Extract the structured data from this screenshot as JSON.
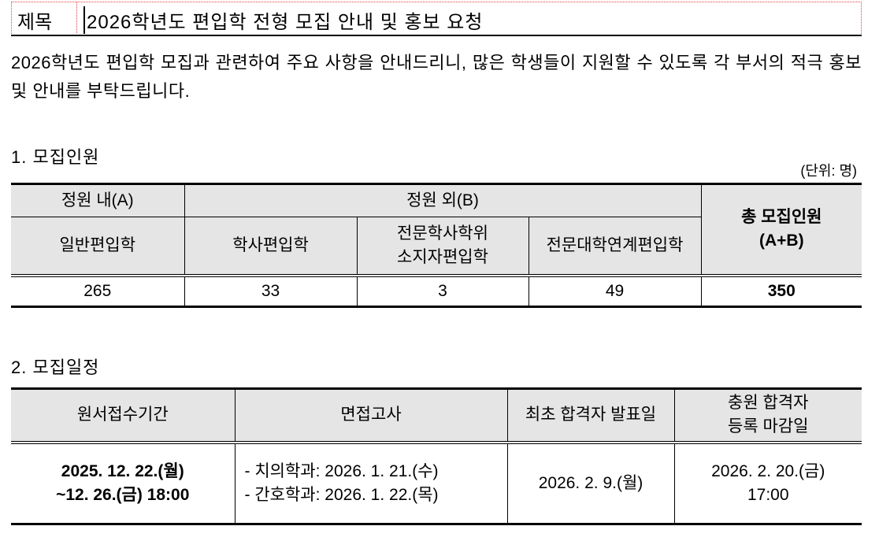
{
  "title": {
    "label": "제목",
    "text": "2026학년도 편입학 전형 모집 안내 및 홍보 요청"
  },
  "intro": "2026학년도 편입학 모집과 관련하여 주요 사항을 안내드리니, 많은 학생들이 지원할 수 있도록 각 부서의 적극 홍보 및 안내를 부탁드립니다.",
  "section1": {
    "heading": "1. 모집인원",
    "unit": "(단위: 명)",
    "group_a": "정원 내(A)",
    "group_b": "정원 외(B)",
    "total_l1": "총 모집인원",
    "total_l2": "(A+B)",
    "cols": [
      "일반편입학",
      "학사편입학",
      "전문학사학위",
      "소지자편입학",
      "전문대학연계편입학"
    ],
    "values": [
      "265",
      "33",
      "3",
      "49",
      "350"
    ]
  },
  "section2": {
    "heading": "2. 모집일정",
    "headers": [
      "원서접수기간",
      "면접고사",
      "최초 합격자 발표일",
      "충원 합격자",
      "등록 마감일"
    ],
    "apply_l1": "2025. 12. 22.(월)",
    "apply_l2": "~12. 26.(금) 18:00",
    "interview_l1": "- 치의학과: 2026. 1. 21.(수)",
    "interview_l2": "- 간호학과: 2026. 1. 22.(목)",
    "first_result": "2026. 2. 9.(월)",
    "reg_l1": "2026. 2. 20.(금)",
    "reg_l2": "17:00"
  }
}
